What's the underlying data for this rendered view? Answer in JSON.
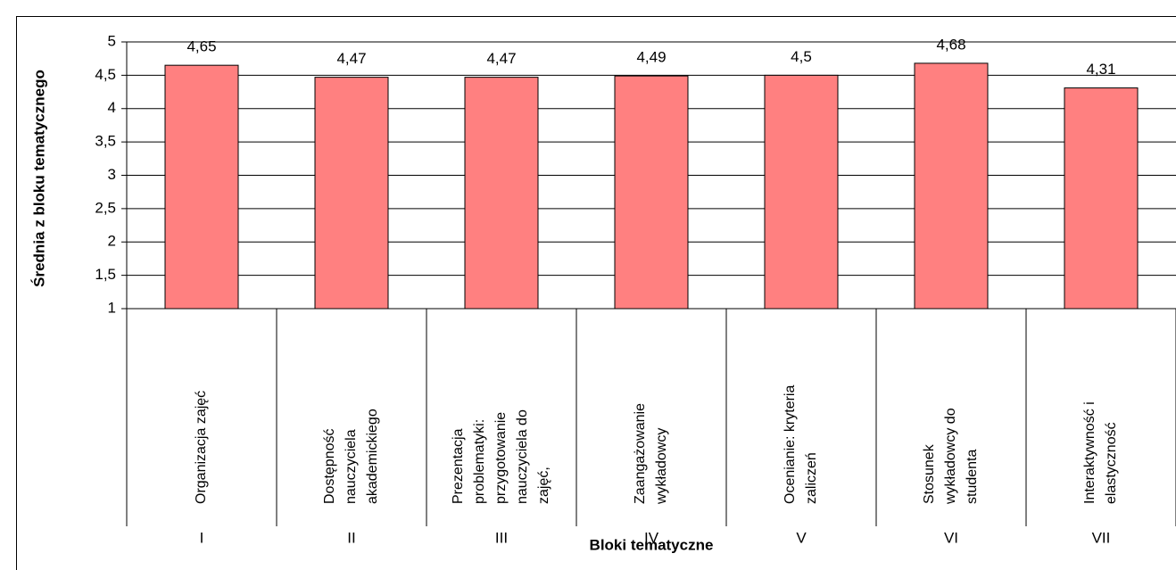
{
  "chart_data": {
    "type": "bar",
    "y_axis_label": "Średnia z bloku tematycznego",
    "x_axis_label": "Bloki tematyczne",
    "categories": [
      "I",
      "II",
      "III",
      "IV",
      "V",
      "VI",
      "VII"
    ],
    "category_labels": [
      [
        "Organizacja zajęć"
      ],
      [
        "Dostępność",
        "nauczyciela",
        "akademickiego"
      ],
      [
        "Prezentacja",
        "problematyki:",
        "przygotowanie",
        "nauczyciela do",
        "zajęć,"
      ],
      [
        "Zaangażowanie",
        "wykładowcy"
      ],
      [
        "Ocenianie: kryteria",
        "zaliczeń"
      ],
      [
        "Stosunek",
        "wykładowcy do",
        "studenta"
      ],
      [
        "Interaktywność i",
        "elastyczność"
      ]
    ],
    "values": [
      4.65,
      4.47,
      4.47,
      4.49,
      4.5,
      4.68,
      4.31
    ],
    "value_labels": [
      "4,65",
      "4,47",
      "4,47",
      "4,49",
      "4,5",
      "4,68",
      "4,31"
    ],
    "color": "#ff8080",
    "ylim": [
      1,
      5
    ],
    "yticks": [
      1,
      {
        "value": 1.5,
        "label": "1,5"
      },
      2,
      {
        "value": 2.5,
        "label": "2,5"
      },
      3,
      {
        "value": 3.5,
        "label": "3,5"
      },
      4,
      {
        "value": 4.5,
        "label": "4,5"
      },
      5
    ],
    "grid": true
  }
}
